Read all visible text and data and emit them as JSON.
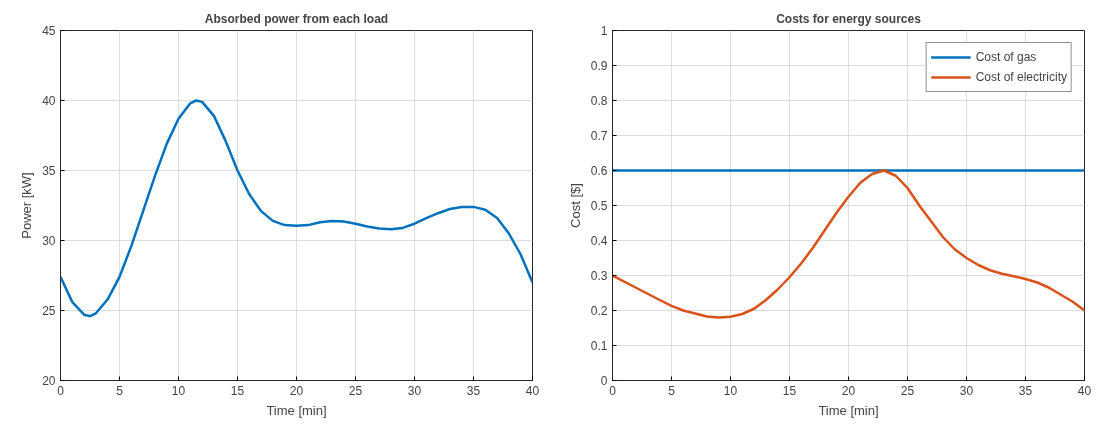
{
  "chart_data": [
    {
      "type": "line",
      "title": "Absorbed power from each load",
      "xlabel": "Time [min]",
      "ylabel": "Power [kW]",
      "xlim": [
        0,
        40
      ],
      "ylim": [
        20,
        45
      ],
      "xticks": [
        0,
        5,
        10,
        15,
        20,
        25,
        30,
        35,
        40
      ],
      "yticks": [
        20,
        25,
        30,
        35,
        40,
        45
      ],
      "grid": true,
      "legend": false,
      "series": [
        {
          "color": "#0072bd",
          "x": [
            0,
            1,
            2,
            2.5,
            3,
            4,
            5,
            6,
            7,
            8,
            9,
            10,
            11,
            11.5,
            12,
            13,
            14,
            15,
            16,
            17,
            18,
            19,
            20,
            21,
            22,
            23,
            24,
            25,
            26,
            27,
            28,
            29,
            30,
            31,
            32,
            33,
            34,
            35,
            36,
            37,
            38,
            39,
            40
          ],
          "values": [
            27.4,
            25.6,
            24.7,
            24.6,
            24.8,
            25.8,
            27.4,
            29.6,
            32.1,
            34.6,
            36.9,
            38.7,
            39.8,
            40.0,
            39.9,
            38.9,
            37.1,
            35.0,
            33.3,
            32.1,
            31.4,
            31.1,
            31.05,
            31.1,
            31.3,
            31.4,
            31.35,
            31.2,
            31.0,
            30.85,
            30.8,
            30.9,
            31.2,
            31.6,
            31.95,
            32.25,
            32.4,
            32.4,
            32.2,
            31.6,
            30.5,
            29.0,
            27.0
          ]
        }
      ]
    },
    {
      "type": "line",
      "title": "Costs for energy sources",
      "xlabel": "Time [min]",
      "ylabel": "Cost [$]",
      "xlim": [
        0,
        40
      ],
      "ylim": [
        0,
        1
      ],
      "xticks": [
        0,
        5,
        10,
        15,
        20,
        25,
        30,
        35,
        40
      ],
      "yticks": [
        0,
        0.1,
        0.2,
        0.3,
        0.4,
        0.5,
        0.6,
        0.7,
        0.8,
        0.9,
        1
      ],
      "grid": true,
      "legend": "top right",
      "series": [
        {
          "name": "Cost of gas",
          "color": "#0072bd",
          "x": [
            0,
            40
          ],
          "values": [
            0.6,
            0.6
          ]
        },
        {
          "name": "Cost of electricity",
          "color": "#d95319",
          "x": [
            0,
            2,
            4,
            5,
            6,
            8,
            9,
            10,
            11,
            12,
            13,
            14,
            15,
            16,
            17,
            18,
            19,
            20,
            21,
            22,
            23,
            24,
            25,
            26,
            27,
            28,
            29,
            30,
            31,
            32,
            33,
            34,
            35,
            36,
            37,
            38,
            39,
            40
          ],
          "values": [
            0.3,
            0.265,
            0.23,
            0.213,
            0.2,
            0.183,
            0.18,
            0.182,
            0.19,
            0.205,
            0.23,
            0.26,
            0.295,
            0.335,
            0.38,
            0.43,
            0.48,
            0.525,
            0.565,
            0.59,
            0.6,
            0.585,
            0.55,
            0.5,
            0.455,
            0.41,
            0.375,
            0.35,
            0.33,
            0.315,
            0.305,
            0.298,
            0.29,
            0.28,
            0.265,
            0.245,
            0.225,
            0.2
          ]
        }
      ]
    }
  ]
}
